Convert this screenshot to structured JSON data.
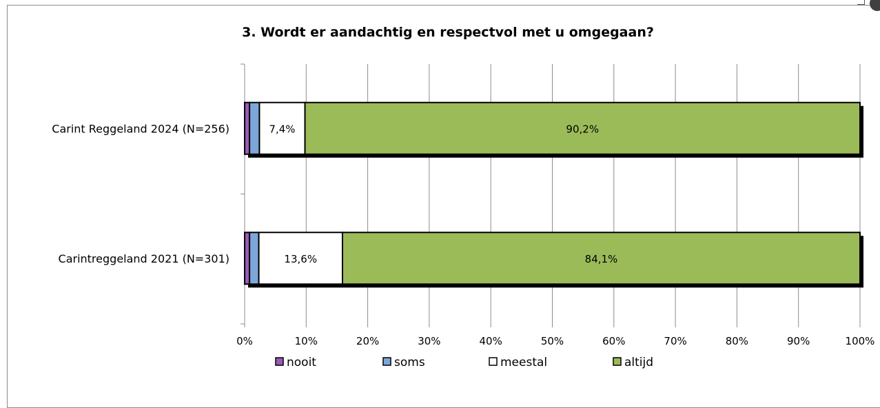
{
  "chart_data": {
    "type": "bar",
    "orientation": "horizontal",
    "stacked": true,
    "percent_stacked": true,
    "title": "3. Wordt er aandachtig en respectvol met u omgegaan?",
    "categories": [
      "Carint Reggeland 2024 (N=256)",
      "Carintreggeland 2021 (N=301)"
    ],
    "series": [
      {
        "name": "nooit",
        "color": "#9b59b6",
        "values": [
          0.8,
          0.8
        ]
      },
      {
        "name": "soms",
        "color": "#7da7d9",
        "values": [
          1.6,
          1.5
        ]
      },
      {
        "name": "meestal",
        "color": "#ffffff",
        "values": [
          7.4,
          13.6
        ],
        "labels": [
          "7,4%",
          "13,6%"
        ]
      },
      {
        "name": "altijd",
        "color": "#9bbb59",
        "values": [
          90.2,
          84.1
        ],
        "labels": [
          "90,2%",
          "84,1%"
        ]
      }
    ],
    "xlim": [
      0,
      100
    ],
    "x_ticks": [
      "0%",
      "10%",
      "20%",
      "30%",
      "40%",
      "50%",
      "60%",
      "70%",
      "80%",
      "90%",
      "100%"
    ],
    "grid": true,
    "legend_position": "bottom"
  }
}
